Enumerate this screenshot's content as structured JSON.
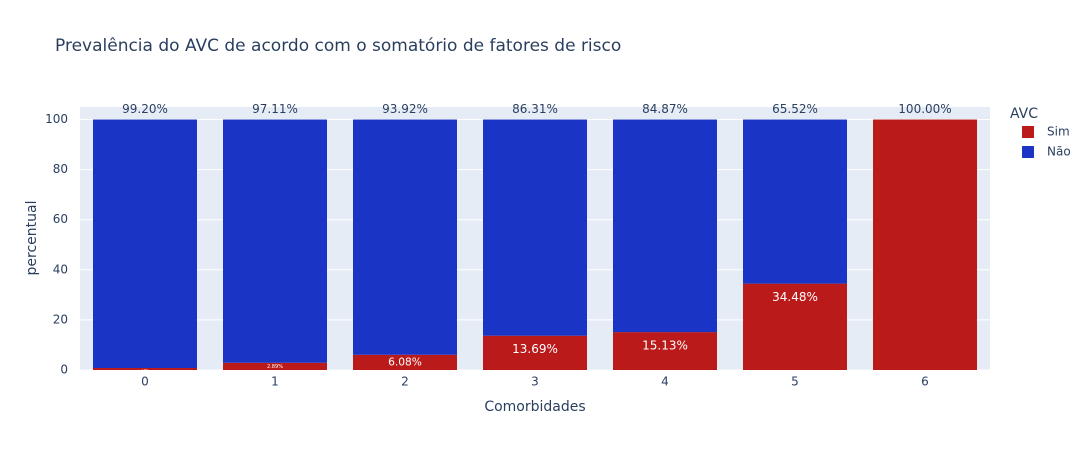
{
  "chart_data": {
    "type": "bar",
    "stacked": true,
    "title": "Prevalência do AVC de acordo com o somatório de fatores de risco",
    "x_label": "Comorbidades",
    "y_label": "percentual",
    "legend_title": "AVC",
    "categories": [
      "0",
      "1",
      "2",
      "3",
      "4",
      "5",
      "6"
    ],
    "series": [
      {
        "name": "Sim",
        "color": "#bb1a1a",
        "values": [
          0.8,
          2.89,
          6.08,
          13.69,
          15.13,
          34.48,
          100.0
        ],
        "value_labels": [
          "0.80%",
          "2.89%",
          "6.08%",
          "13.69%",
          "15.13%",
          "34.48%",
          "100.00%"
        ]
      },
      {
        "name": "Não",
        "color": "#1a35c5",
        "values": [
          99.2,
          97.11,
          93.92,
          86.31,
          84.87,
          65.52,
          null
        ],
        "value_labels": [
          "99.20%",
          "97.11%",
          "93.92%",
          "86.31%",
          "84.87%",
          "65.52%",
          null
        ]
      }
    ],
    "ylim": [
      0,
      105
    ],
    "yticks": [
      0,
      20,
      40,
      60,
      80,
      100
    ],
    "grid": true
  }
}
